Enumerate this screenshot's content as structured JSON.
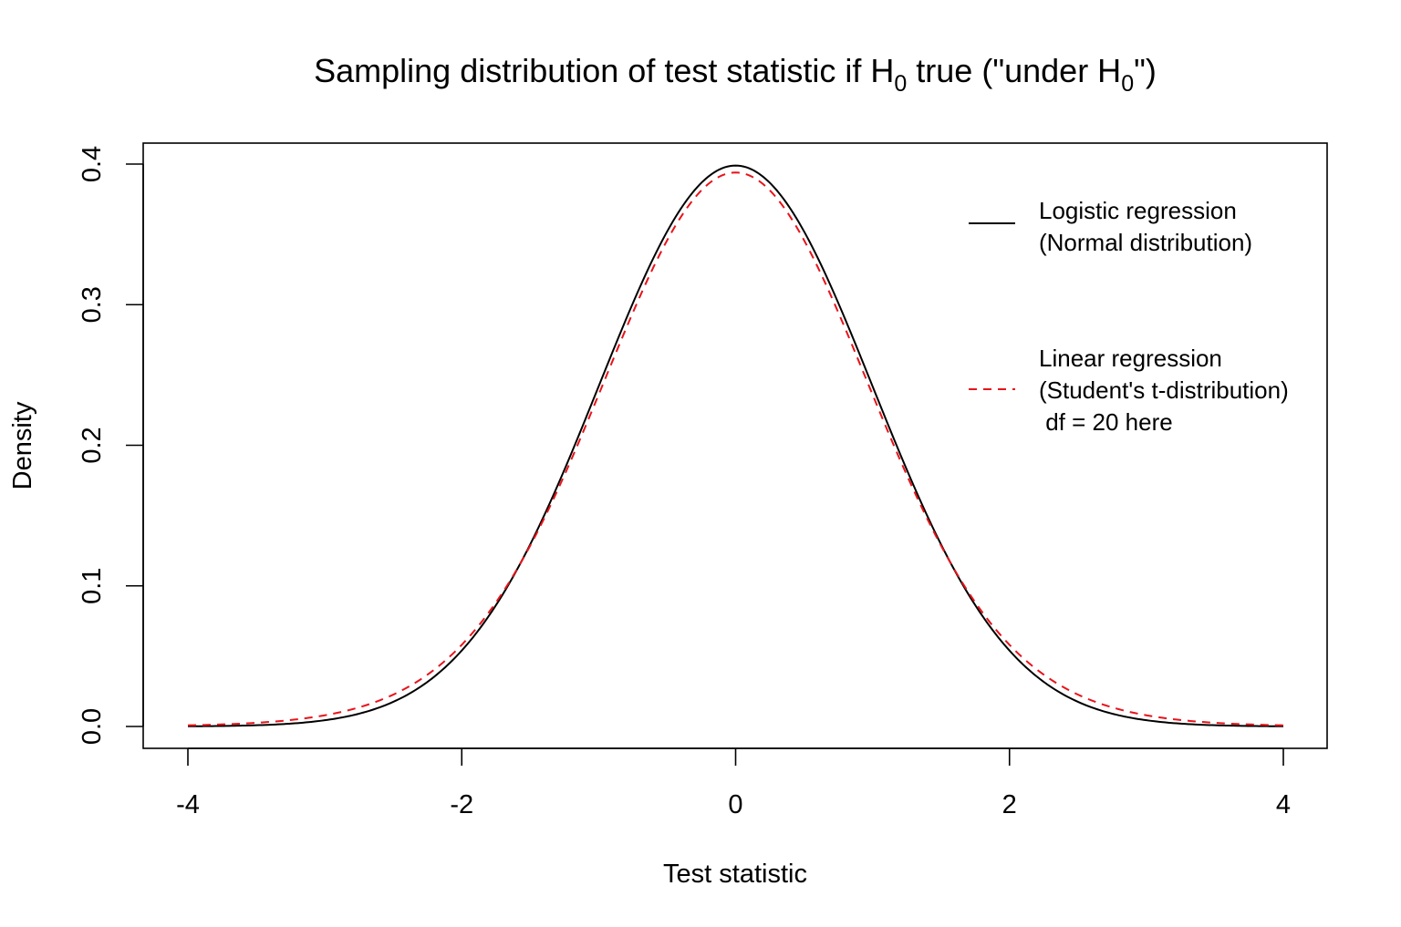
{
  "chart_data": {
    "type": "line",
    "title": {
      "prefix": "Sampling distribution of test statistic if H",
      "sub1": "0",
      "middle": " true (\"under H",
      "sub2": "0",
      "suffix": "\")"
    },
    "xlabel": "Test statistic",
    "ylabel": "Density",
    "xlim": [
      -4,
      4
    ],
    "ylim": [
      0,
      0.4
    ],
    "x_ticks": [
      -4,
      -2,
      0,
      2,
      4
    ],
    "x_tick_labels": [
      "-4",
      "-2",
      "0",
      "2",
      "4"
    ],
    "y_ticks": [
      0.0,
      0.1,
      0.2,
      0.3,
      0.4
    ],
    "y_tick_labels": [
      "0.0",
      "0.1",
      "0.2",
      "0.3",
      "0.4"
    ],
    "grid": false,
    "legend_position": "top-right",
    "series": [
      {
        "name": "Logistic regression (Normal distribution)",
        "legend_lines": [
          "Logistic regression",
          "(Normal distribution)"
        ],
        "color": "#000000",
        "dash": "solid",
        "distribution": "normal",
        "x": [
          -4,
          -3.5,
          -3,
          -2.5,
          -2,
          -1.75,
          -1.5,
          -1.25,
          -1,
          -0.75,
          -0.5,
          -0.25,
          0,
          0.25,
          0.5,
          0.75,
          1,
          1.25,
          1.5,
          1.75,
          2,
          2.5,
          3,
          3.5,
          4
        ],
        "y": [
          0.0001,
          0.0009,
          0.0044,
          0.0175,
          0.054,
          0.0863,
          0.1295,
          0.1826,
          0.242,
          0.3011,
          0.3521,
          0.3867,
          0.3989,
          0.3867,
          0.3521,
          0.3011,
          0.242,
          0.1826,
          0.1295,
          0.0863,
          0.054,
          0.0175,
          0.0044,
          0.0009,
          0.0001
        ]
      },
      {
        "name": "Linear regression (Student's t-distribution) df = 20 here",
        "legend_lines": [
          "Linear regression",
          "(Student's t-distribution)",
          " df = 20 here"
        ],
        "color": "#e8141b",
        "dash": "dashed",
        "distribution": "t",
        "df": 20,
        "x": [
          -4,
          -3.5,
          -3,
          -2.5,
          -2,
          -1.75,
          -1.5,
          -1.25,
          -1,
          -0.75,
          -0.5,
          -0.25,
          0,
          0.25,
          0.5,
          0.75,
          1,
          1.25,
          1.5,
          1.75,
          2,
          2.5,
          3,
          3.5,
          4
        ],
        "y": [
          0.0008,
          0.0025,
          0.0079,
          0.0246,
          0.0611,
          0.0903,
          0.1293,
          0.1776,
          0.236,
          0.293,
          0.3435,
          0.3788,
          0.394,
          0.3788,
          0.3435,
          0.293,
          0.236,
          0.1776,
          0.1293,
          0.0903,
          0.0611,
          0.0246,
          0.0079,
          0.0025,
          0.0008
        ]
      }
    ]
  }
}
